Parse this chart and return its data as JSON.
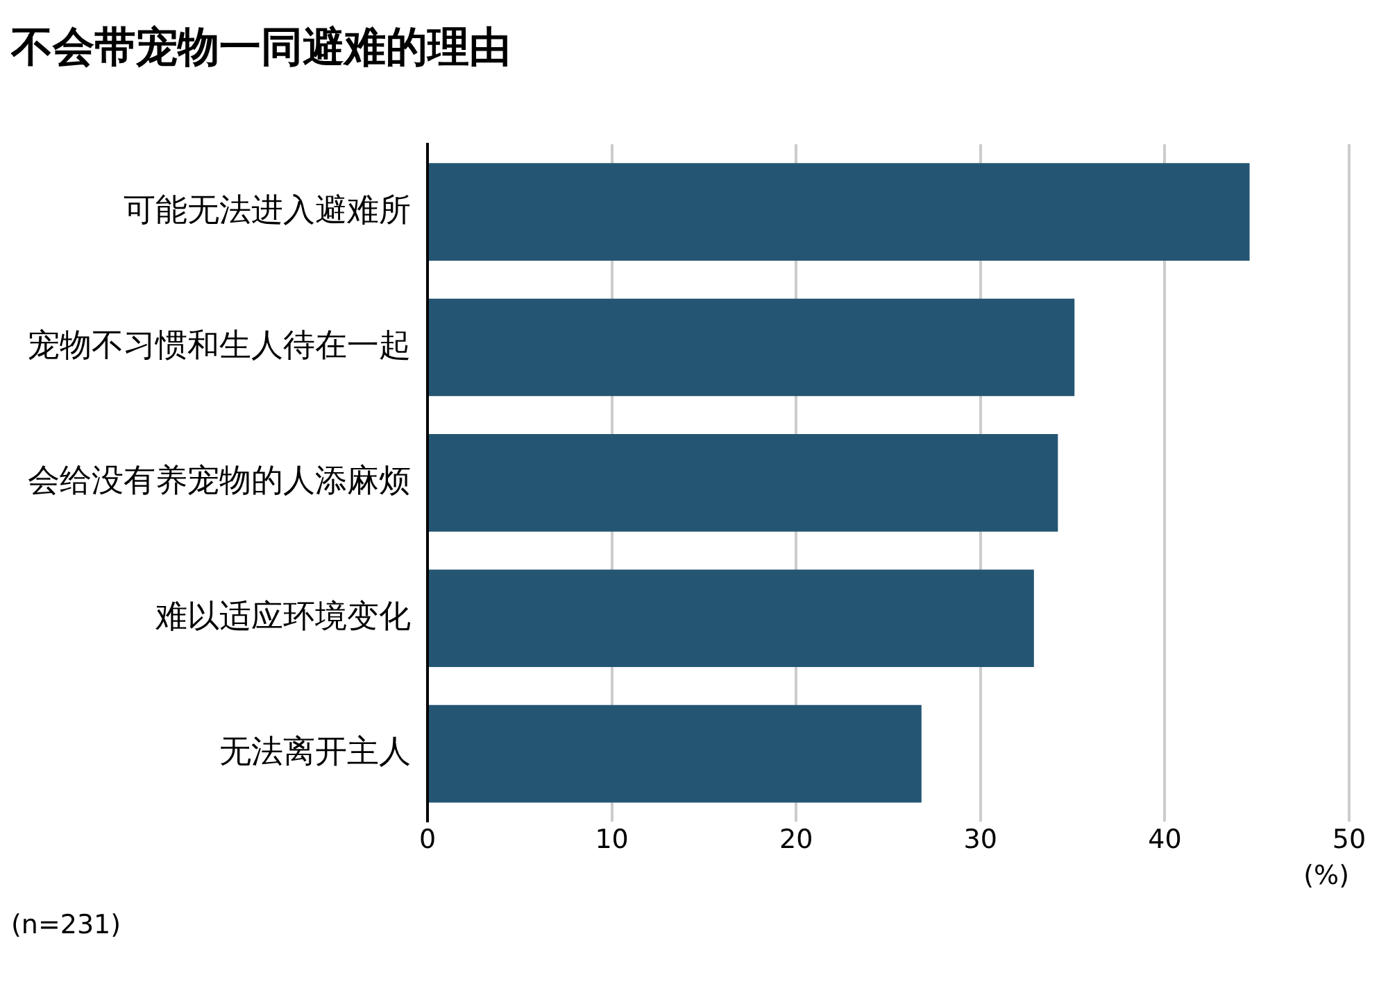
{
  "chart_data": {
    "type": "bar",
    "orientation": "horizontal",
    "title": "不会带宠物一同避难的理由",
    "xlabel": "(%)",
    "categories": [
      "可能无法进入避难所",
      "宠物不习惯和生人待在一起",
      "会给没有养宠物的人添麻烦",
      "难以适应环境变化",
      "无法离开主人"
    ],
    "values": [
      44.6,
      35.1,
      34.2,
      32.9,
      26.8
    ],
    "color": "#245673",
    "xlim": [
      0,
      50
    ],
    "xticks": [
      0,
      10,
      20,
      30,
      40,
      50
    ],
    "grid": "x",
    "legend": false,
    "annotations": [
      "(n=231)"
    ]
  }
}
